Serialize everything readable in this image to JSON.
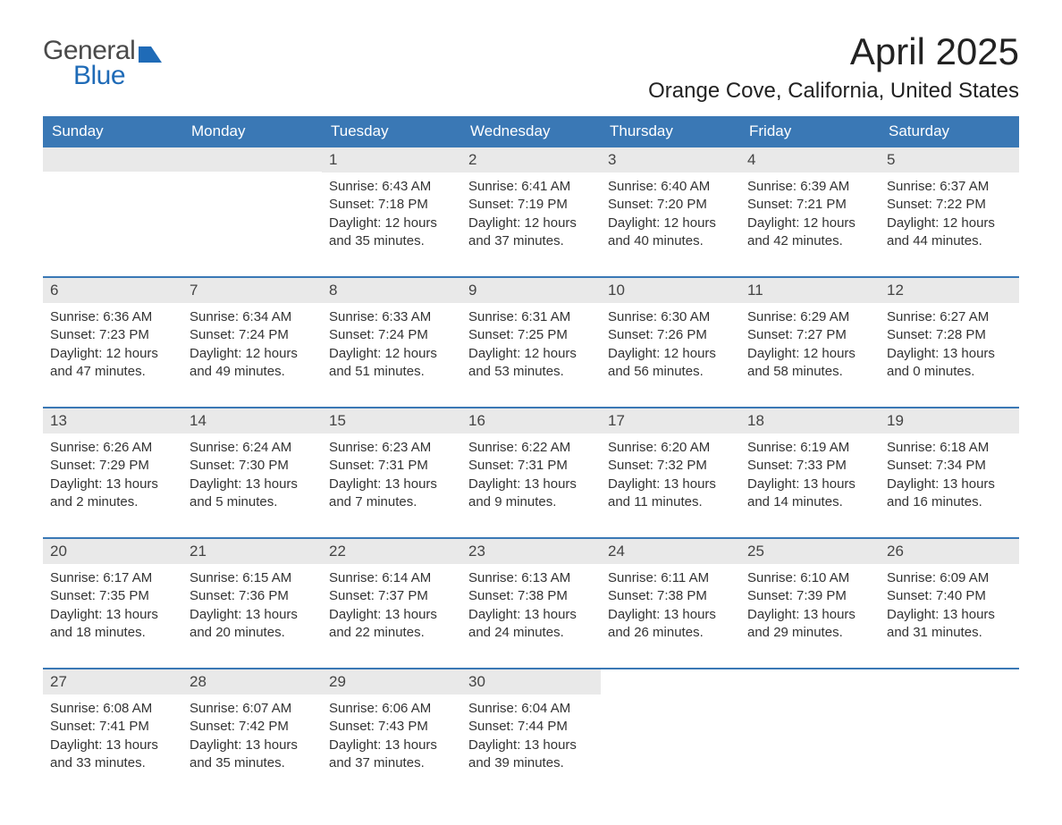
{
  "brand": {
    "word1": "General",
    "word2": "Blue",
    "logo_color": "#1f6bb7",
    "logo_text_color": "#4a4a4a"
  },
  "title": {
    "month": "April 2025",
    "location": "Orange Cove, California, United States"
  },
  "colors": {
    "header_bg": "#3a78b5",
    "header_fg": "#ffffff",
    "daynum_bg": "#e9e9e9",
    "week_border": "#3a78b5",
    "body_text": "#333333",
    "page_bg": "#ffffff"
  },
  "fonts": {
    "base_family": "Arial, Helvetica, sans-serif",
    "month_title_size_pt": 32,
    "location_size_pt": 18,
    "dow_size_pt": 13,
    "body_size_pt": 11
  },
  "days_of_week": [
    "Sunday",
    "Monday",
    "Tuesday",
    "Wednesday",
    "Thursday",
    "Friday",
    "Saturday"
  ],
  "layout": {
    "columns": 7,
    "week_count": 5,
    "leading_blanks": 2,
    "trailing_blanks": 3
  },
  "weeks": [
    [
      {
        "empty": true
      },
      {
        "empty": true
      },
      {
        "day": "1",
        "sunrise": "Sunrise: 6:43 AM",
        "sunset": "Sunset: 7:18 PM",
        "daylight": "Daylight: 12 hours and 35 minutes."
      },
      {
        "day": "2",
        "sunrise": "Sunrise: 6:41 AM",
        "sunset": "Sunset: 7:19 PM",
        "daylight": "Daylight: 12 hours and 37 minutes."
      },
      {
        "day": "3",
        "sunrise": "Sunrise: 6:40 AM",
        "sunset": "Sunset: 7:20 PM",
        "daylight": "Daylight: 12 hours and 40 minutes."
      },
      {
        "day": "4",
        "sunrise": "Sunrise: 6:39 AM",
        "sunset": "Sunset: 7:21 PM",
        "daylight": "Daylight: 12 hours and 42 minutes."
      },
      {
        "day": "5",
        "sunrise": "Sunrise: 6:37 AM",
        "sunset": "Sunset: 7:22 PM",
        "daylight": "Daylight: 12 hours and 44 minutes."
      }
    ],
    [
      {
        "day": "6",
        "sunrise": "Sunrise: 6:36 AM",
        "sunset": "Sunset: 7:23 PM",
        "daylight": "Daylight: 12 hours and 47 minutes."
      },
      {
        "day": "7",
        "sunrise": "Sunrise: 6:34 AM",
        "sunset": "Sunset: 7:24 PM",
        "daylight": "Daylight: 12 hours and 49 minutes."
      },
      {
        "day": "8",
        "sunrise": "Sunrise: 6:33 AM",
        "sunset": "Sunset: 7:24 PM",
        "daylight": "Daylight: 12 hours and 51 minutes."
      },
      {
        "day": "9",
        "sunrise": "Sunrise: 6:31 AM",
        "sunset": "Sunset: 7:25 PM",
        "daylight": "Daylight: 12 hours and 53 minutes."
      },
      {
        "day": "10",
        "sunrise": "Sunrise: 6:30 AM",
        "sunset": "Sunset: 7:26 PM",
        "daylight": "Daylight: 12 hours and 56 minutes."
      },
      {
        "day": "11",
        "sunrise": "Sunrise: 6:29 AM",
        "sunset": "Sunset: 7:27 PM",
        "daylight": "Daylight: 12 hours and 58 minutes."
      },
      {
        "day": "12",
        "sunrise": "Sunrise: 6:27 AM",
        "sunset": "Sunset: 7:28 PM",
        "daylight": "Daylight: 13 hours and 0 minutes."
      }
    ],
    [
      {
        "day": "13",
        "sunrise": "Sunrise: 6:26 AM",
        "sunset": "Sunset: 7:29 PM",
        "daylight": "Daylight: 13 hours and 2 minutes."
      },
      {
        "day": "14",
        "sunrise": "Sunrise: 6:24 AM",
        "sunset": "Sunset: 7:30 PM",
        "daylight": "Daylight: 13 hours and 5 minutes."
      },
      {
        "day": "15",
        "sunrise": "Sunrise: 6:23 AM",
        "sunset": "Sunset: 7:31 PM",
        "daylight": "Daylight: 13 hours and 7 minutes."
      },
      {
        "day": "16",
        "sunrise": "Sunrise: 6:22 AM",
        "sunset": "Sunset: 7:31 PM",
        "daylight": "Daylight: 13 hours and 9 minutes."
      },
      {
        "day": "17",
        "sunrise": "Sunrise: 6:20 AM",
        "sunset": "Sunset: 7:32 PM",
        "daylight": "Daylight: 13 hours and 11 minutes."
      },
      {
        "day": "18",
        "sunrise": "Sunrise: 6:19 AM",
        "sunset": "Sunset: 7:33 PM",
        "daylight": "Daylight: 13 hours and 14 minutes."
      },
      {
        "day": "19",
        "sunrise": "Sunrise: 6:18 AM",
        "sunset": "Sunset: 7:34 PM",
        "daylight": "Daylight: 13 hours and 16 minutes."
      }
    ],
    [
      {
        "day": "20",
        "sunrise": "Sunrise: 6:17 AM",
        "sunset": "Sunset: 7:35 PM",
        "daylight": "Daylight: 13 hours and 18 minutes."
      },
      {
        "day": "21",
        "sunrise": "Sunrise: 6:15 AM",
        "sunset": "Sunset: 7:36 PM",
        "daylight": "Daylight: 13 hours and 20 minutes."
      },
      {
        "day": "22",
        "sunrise": "Sunrise: 6:14 AM",
        "sunset": "Sunset: 7:37 PM",
        "daylight": "Daylight: 13 hours and 22 minutes."
      },
      {
        "day": "23",
        "sunrise": "Sunrise: 6:13 AM",
        "sunset": "Sunset: 7:38 PM",
        "daylight": "Daylight: 13 hours and 24 minutes."
      },
      {
        "day": "24",
        "sunrise": "Sunrise: 6:11 AM",
        "sunset": "Sunset: 7:38 PM",
        "daylight": "Daylight: 13 hours and 26 minutes."
      },
      {
        "day": "25",
        "sunrise": "Sunrise: 6:10 AM",
        "sunset": "Sunset: 7:39 PM",
        "daylight": "Daylight: 13 hours and 29 minutes."
      },
      {
        "day": "26",
        "sunrise": "Sunrise: 6:09 AM",
        "sunset": "Sunset: 7:40 PM",
        "daylight": "Daylight: 13 hours and 31 minutes."
      }
    ],
    [
      {
        "day": "27",
        "sunrise": "Sunrise: 6:08 AM",
        "sunset": "Sunset: 7:41 PM",
        "daylight": "Daylight: 13 hours and 33 minutes."
      },
      {
        "day": "28",
        "sunrise": "Sunrise: 6:07 AM",
        "sunset": "Sunset: 7:42 PM",
        "daylight": "Daylight: 13 hours and 35 minutes."
      },
      {
        "day": "29",
        "sunrise": "Sunrise: 6:06 AM",
        "sunset": "Sunset: 7:43 PM",
        "daylight": "Daylight: 13 hours and 37 minutes."
      },
      {
        "day": "30",
        "sunrise": "Sunrise: 6:04 AM",
        "sunset": "Sunset: 7:44 PM",
        "daylight": "Daylight: 13 hours and 39 minutes."
      },
      {
        "empty": true
      },
      {
        "empty": true
      },
      {
        "empty": true
      }
    ]
  ]
}
